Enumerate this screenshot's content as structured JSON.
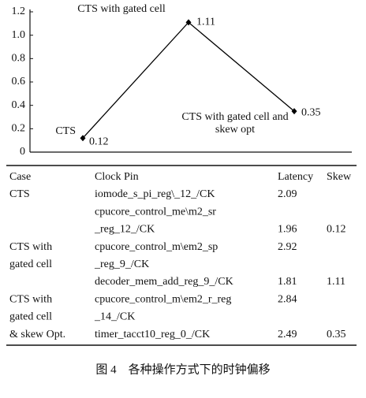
{
  "chart_data": {
    "type": "line",
    "categories": [
      "CTS",
      "CTS with gated cell",
      "CTS with gated cell and skew opt"
    ],
    "values": [
      0.12,
      1.11,
      0.35
    ],
    "color": "#000000",
    "ylim": [
      0,
      1.2
    ],
    "yticks": [
      0,
      0.2,
      0.4,
      0.6,
      0.8,
      {
        "value": 1,
        "label": "1.0"
      },
      1.2
    ]
  },
  "table": {
    "header": [
      "Case",
      "Clock Pin",
      "Latency",
      "Skew"
    ],
    "rows": [
      {
        "case": "CTS",
        "pin": "iomode_s_pi_reg\\_12_/CK",
        "latency": 2.09
      },
      {
        "pin": "cpucore_control_me\\m2_sr"
      },
      {
        "pin": "_reg_12_/CK",
        "latency": 1.96,
        "skew": 0.12
      },
      {
        "case": "CTS with",
        "pin": "cpucore_control_m\\em2_sp",
        "latency": 2.92
      },
      {
        "case": "gated cell",
        "pin": "_reg_9_/CK"
      },
      {
        "pin": "decoder_mem_add_reg_9_/CK",
        "latency": 1.81,
        "skew": 1.11
      },
      {
        "case": "CTS with",
        "pin": "cpucore_control_m\\em2_r_reg",
        "latency": 2.84
      },
      {
        "case": "gated cell",
        "pin": "_14_/CK"
      },
      {
        "case": "& skew Opt.",
        "pin": "timer_tacct10_reg_0_/CK",
        "latency": 2.49,
        "skew": 0.35
      }
    ]
  },
  "caption": "图 4　各种操作方式下的时钟偏移"
}
